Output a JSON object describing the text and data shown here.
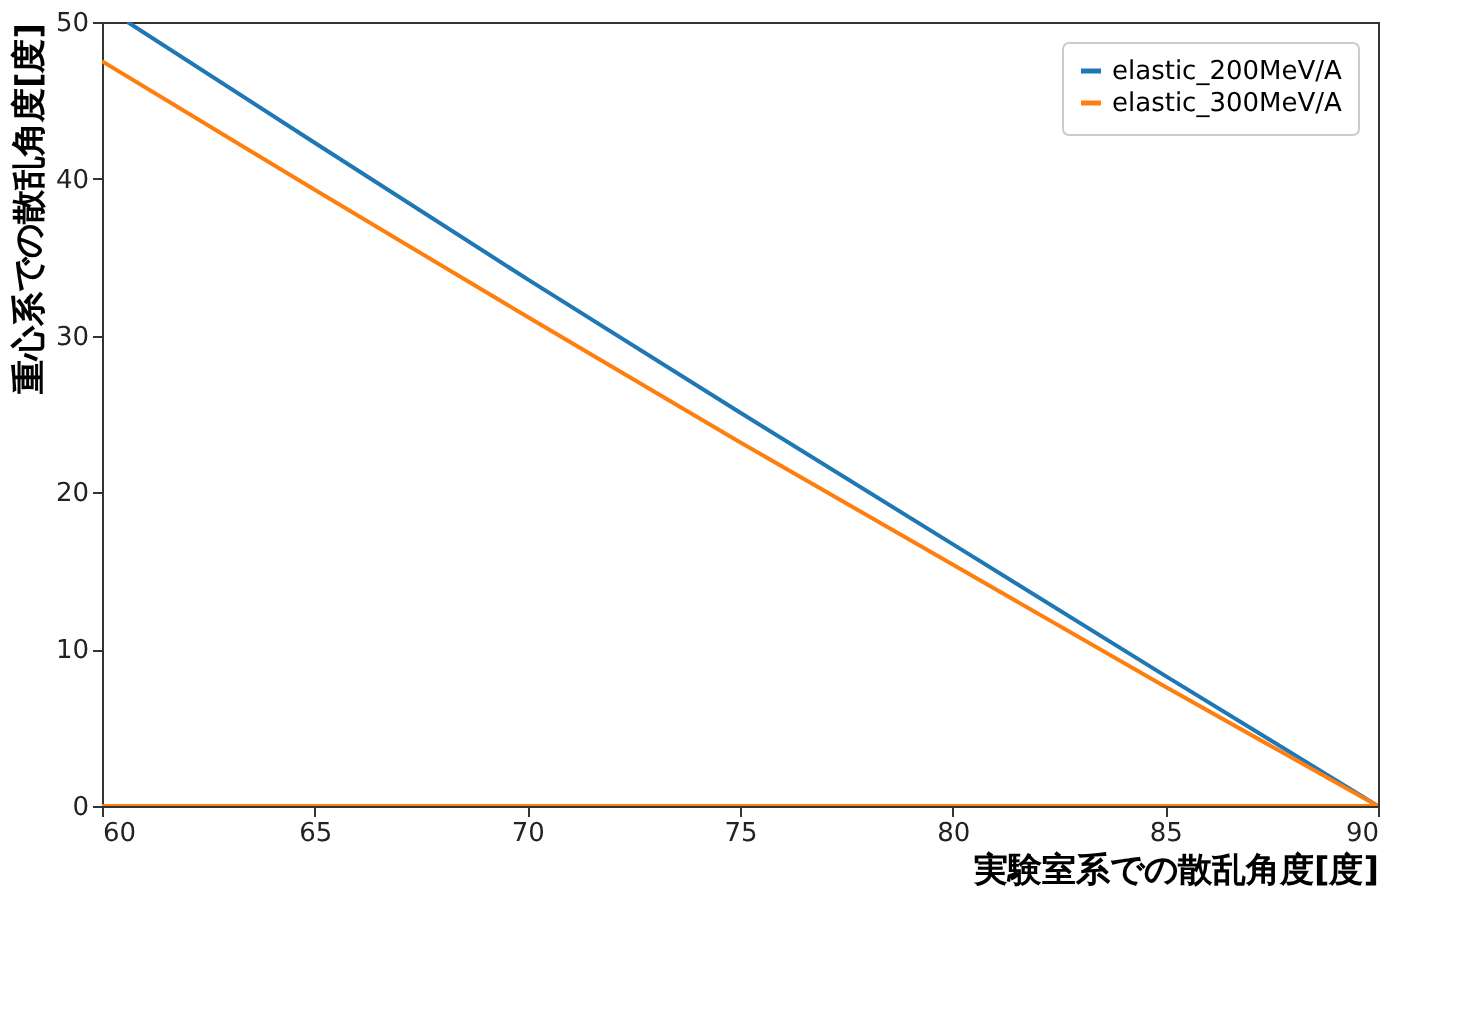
{
  "chart_data": {
    "type": "line",
    "xlabel": "実験室系での散乱角度[度]",
    "ylabel": "重心系での散乱角度[度]",
    "xlim": [
      60,
      90
    ],
    "ylim": [
      0,
      50
    ],
    "xticks": [
      60,
      65,
      70,
      75,
      80,
      85,
      90
    ],
    "yticks": [
      0,
      10,
      20,
      30,
      40,
      50
    ],
    "grid": false,
    "legend": "top right",
    "line_style": "solid",
    "marker": "none",
    "series": [
      {
        "name": "elastic_200MeV/A",
        "color": "#1f77b4",
        "x": [
          60.6,
          65,
          70,
          75,
          80,
          85,
          90,
          60
        ],
        "values": [
          50,
          42.3,
          33.6,
          25.1,
          16.7,
          8.3,
          0,
          0
        ]
      },
      {
        "name": "elastic_300MeV/A",
        "color": "#ff7f0e",
        "x": [
          60,
          65,
          70,
          75,
          80,
          85,
          90,
          60
        ],
        "values": [
          47.5,
          39.3,
          31.2,
          23.2,
          15.4,
          7.6,
          0,
          0
        ]
      }
    ]
  }
}
